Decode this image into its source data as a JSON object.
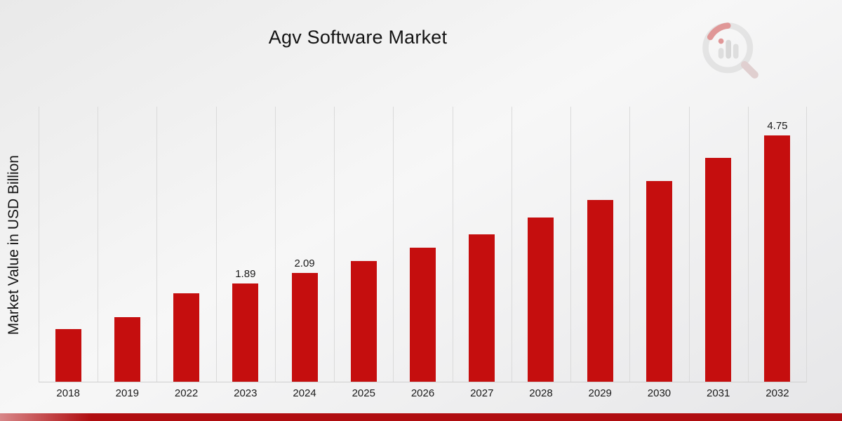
{
  "colors": {
    "bar": "#c50e0e",
    "accent_band": "#b00d10",
    "gridline": "#dadada",
    "logo_gray": "#d6d6d6",
    "logo_red": "#cf4a4a"
  },
  "chart_data": {
    "type": "bar",
    "title": "Agv Software Market",
    "xlabel": "",
    "ylabel": "Market Value in USD Billion",
    "categories": [
      "2018",
      "2019",
      "2022",
      "2023",
      "2024",
      "2025",
      "2026",
      "2027",
      "2028",
      "2029",
      "2030",
      "2031",
      "2032"
    ],
    "values": [
      1.02,
      1.25,
      1.7,
      1.89,
      2.09,
      2.32,
      2.58,
      2.84,
      3.16,
      3.5,
      3.87,
      4.31,
      4.75
    ],
    "data_labels": [
      null,
      null,
      null,
      "1.89",
      "2.09",
      null,
      null,
      null,
      null,
      null,
      null,
      null,
      "4.75"
    ],
    "ylim": [
      0,
      5.3
    ],
    "grid": "vertical",
    "legend": "none"
  }
}
